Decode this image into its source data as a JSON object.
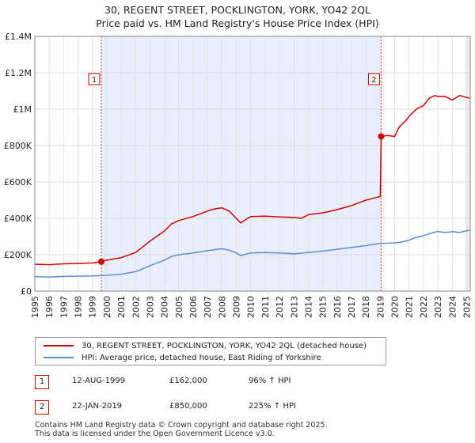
{
  "chart_data": {
    "type": "line",
    "title": "30, REGENT STREET, POCKLINGTON, YORK, YO42 2QL",
    "subtitle": "Price paid vs. HM Land Registry's House Price Index (HPI)",
    "xlim": [
      1995,
      2025.25
    ],
    "ylim": [
      0,
      1400000
    ],
    "x_ticks": [
      1995,
      1996,
      1997,
      1998,
      1999,
      2000,
      2001,
      2002,
      2003,
      2004,
      2005,
      2006,
      2007,
      2008,
      2009,
      2010,
      2011,
      2012,
      2013,
      2014,
      2015,
      2016,
      2017,
      2018,
      2019,
      2020,
      2021,
      2022,
      2023,
      2024,
      2025
    ],
    "y_ticks": [
      {
        "value": 0,
        "label": "£0"
      },
      {
        "value": 200000,
        "label": "£200K"
      },
      {
        "value": 400000,
        "label": "£400K"
      },
      {
        "value": 600000,
        "label": "£600K"
      },
      {
        "value": 800000,
        "label": "£800K"
      },
      {
        "value": 1000000,
        "label": "£1M"
      },
      {
        "value": 1200000,
        "label": "£1.2M"
      },
      {
        "value": 1400000,
        "label": "£1.4M"
      }
    ],
    "shaded_range": [
      1999.62,
      2019.06
    ],
    "series": [
      {
        "name": "30, REGENT STREET, POCKLINGTON, YORK, YO42 2QL (detached house)",
        "color": "#cc0000",
        "x": [
          1995,
          1996,
          1997,
          1998,
          1999,
          1999.62,
          2000,
          2001,
          2002,
          2003,
          2004,
          2004.5,
          2005,
          2006,
          2007,
          2007.5,
          2008,
          2008.5,
          2009,
          2009.3,
          2010,
          2011,
          2012,
          2013,
          2013.5,
          2014,
          2015,
          2016,
          2017,
          2018,
          2018.5,
          2019.0,
          2019.06,
          2019.5,
          2020,
          2020.3,
          2020.8,
          2021,
          2021.5,
          2022,
          2022.4,
          2022.8,
          2023,
          2023.5,
          2024,
          2024.5,
          2025.2
        ],
        "values": [
          148000,
          145000,
          150000,
          152000,
          155000,
          162000,
          170000,
          184000,
          212000,
          275000,
          330000,
          370000,
          388000,
          410000,
          440000,
          452000,
          458000,
          440000,
          400000,
          375000,
          410000,
          412000,
          408000,
          405000,
          400000,
          420000,
          430000,
          448000,
          470000,
          500000,
          510000,
          520000,
          850000,
          855000,
          850000,
          900000,
          940000,
          960000,
          1000000,
          1020000,
          1060000,
          1075000,
          1070000,
          1070000,
          1050000,
          1075000,
          1060000
        ]
      },
      {
        "name": "HPI: Average price, detached house, East Riding of Yorkshire",
        "color": "#5b8fd2",
        "x": [
          1995,
          1996,
          1997,
          1998,
          1999,
          2000,
          2001,
          2002,
          2003,
          2004,
          2004.5,
          2005,
          2006,
          2007,
          2007.5,
          2008,
          2008.5,
          2009,
          2009.3,
          2010,
          2011,
          2012,
          2013,
          2014,
          2015,
          2016,
          2017,
          2018,
          2019,
          2020,
          2020.5,
          2021,
          2021.5,
          2022,
          2022.5,
          2023,
          2023.5,
          2024,
          2024.5,
          2025.2
        ],
        "values": [
          80000,
          78000,
          81000,
          82000,
          83000,
          87000,
          93000,
          107000,
          140000,
          170000,
          190000,
          200000,
          210000,
          222000,
          228000,
          233000,
          225000,
          210000,
          195000,
          210000,
          212000,
          210000,
          205000,
          212000,
          220000,
          230000,
          240000,
          250000,
          262000,
          265000,
          270000,
          280000,
          295000,
          305000,
          318000,
          328000,
          322000,
          327000,
          322000,
          335000
        ]
      }
    ],
    "sales": [
      {
        "label": "1",
        "x": 1999.62,
        "value": 162000
      },
      {
        "label": "2",
        "x": 2019.06,
        "value": 850000
      }
    ]
  },
  "legend": {
    "red_label": "30, REGENT STREET, POCKLINGTON, YORK, YO42 2QL (detached house)",
    "blue_label": "HPI: Average price, detached house, East Riding of Yorkshire",
    "red_color": "#cc0000",
    "blue_color": "#5b8fd2"
  },
  "sales_table": [
    {
      "num": "1",
      "date": "12-AUG-1999",
      "price": "£162,000",
      "hpi": "96% ↑ HPI"
    },
    {
      "num": "2",
      "date": "22-JAN-2019",
      "price": "£850,000",
      "hpi": "225% ↑ HPI"
    }
  ],
  "footer": {
    "line1": "Contains HM Land Registry data © Crown copyright and database right 2025.",
    "line2": "This data is licensed under the Open Government Licence v3.0."
  }
}
